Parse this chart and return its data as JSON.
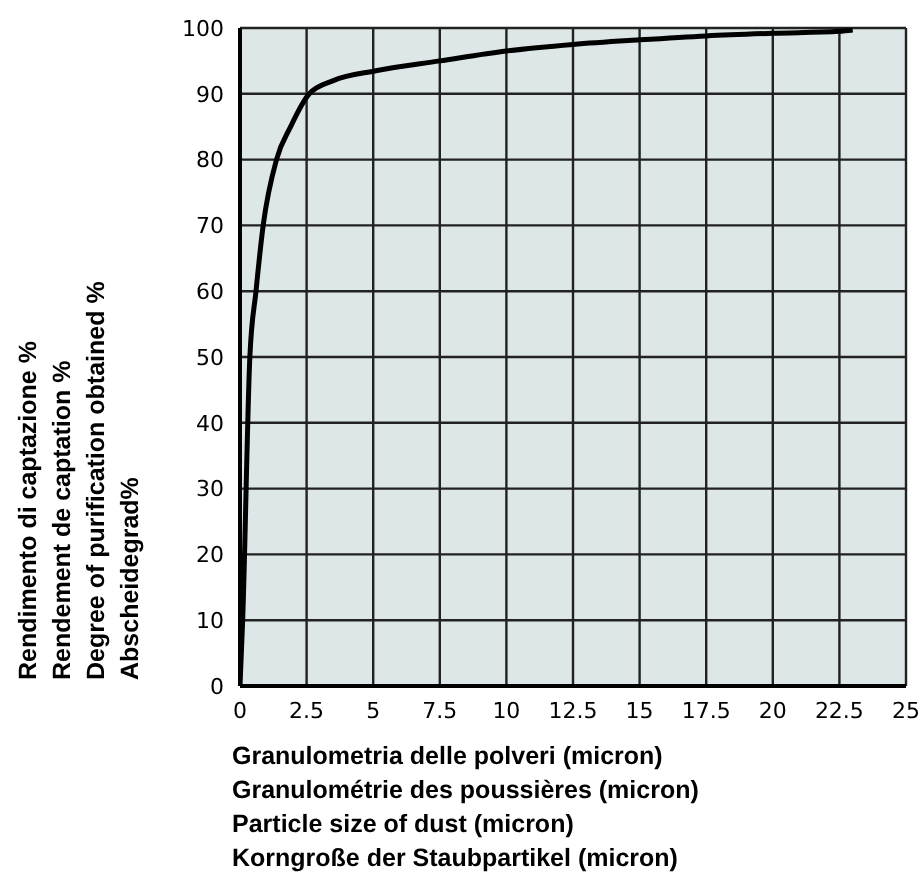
{
  "chart_data": {
    "type": "line",
    "xlabel": "Granulometria delle polveri (micron)\nGranulométrie des poussières (micron)\nParticle size of dust (micron)\nKorngroße der Staubpartikel (micron)",
    "ylabel": "Rendimento di captazione %\nRendement de captation %\nDegree of purification obtained %\nAbscheidegrad%",
    "x": [
      0,
      0.1,
      0.37,
      0.6,
      0.87,
      1.37,
      1.9,
      2.6,
      3.5,
      5.1,
      7.5,
      10,
      12.5,
      15,
      17.5,
      20,
      22.5,
      23
    ],
    "series": [
      {
        "color": "#000000",
        "values": [
          0,
          10,
          50,
          60,
          70,
          80,
          85,
          90,
          92,
          93.5,
          95,
          96.5,
          97.5,
          98.2,
          98.8,
          99.2,
          99.5,
          99.7
        ]
      }
    ],
    "xlim": [
      0,
      25
    ],
    "xticks": [
      0,
      2.5,
      5,
      7.5,
      10,
      12.5,
      15,
      17.5,
      20,
      22.5,
      25
    ],
    "ylim": [
      0,
      100
    ],
    "yticks": [
      0,
      10,
      20,
      30,
      40,
      50,
      60,
      70,
      80,
      90,
      100
    ],
    "grid": true,
    "marker": "none",
    "line_style": "solid"
  }
}
